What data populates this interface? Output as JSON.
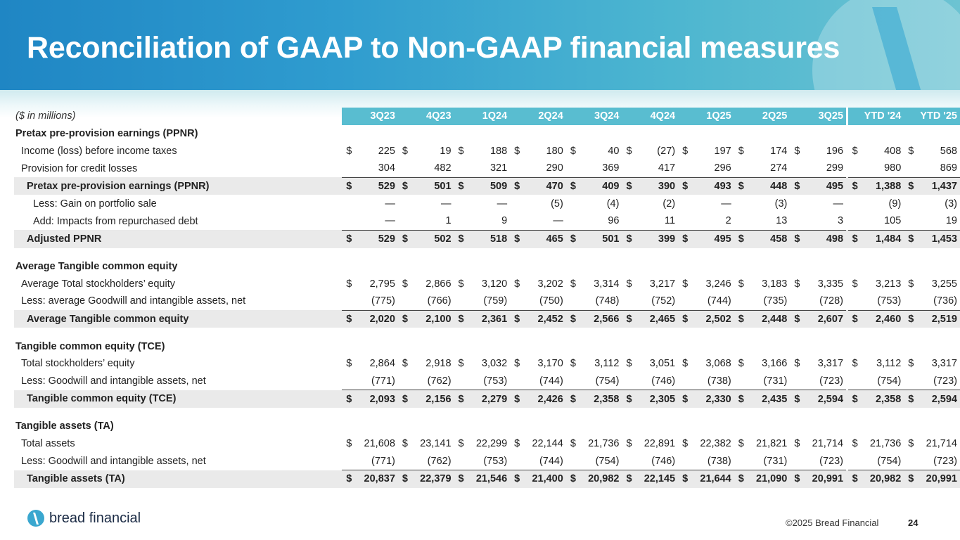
{
  "title": "Reconciliation of GAAP to Non-GAAP financial measures",
  "units_label": "($ in millions)",
  "columns": [
    "3Q23",
    "4Q23",
    "1Q24",
    "2Q24",
    "3Q24",
    "4Q24",
    "1Q25",
    "2Q25",
    "3Q25",
    "YTD '24",
    "YTD '25"
  ],
  "rows": [
    {
      "label": "Pretax pre-provision earnings (PPNR)",
      "style": "sec",
      "values": []
    },
    {
      "label": "Income (loss) before income taxes",
      "style": "sub",
      "cur": true,
      "values": [
        "225",
        "19",
        "188",
        "180",
        "40",
        "(27)",
        "197",
        "174",
        "196",
        "408",
        "568"
      ]
    },
    {
      "label": "Provision for credit losses",
      "style": "sub bline",
      "cur": false,
      "values": [
        "304",
        "482",
        "321",
        "290",
        "369",
        "417",
        "296",
        "274",
        "299",
        "980",
        "869"
      ]
    },
    {
      "label": "Pretax pre-provision earnings (PPNR)",
      "style": "tot shade bold",
      "cur": true,
      "values": [
        "529",
        "501",
        "509",
        "470",
        "409",
        "390",
        "493",
        "448",
        "495",
        "1,388",
        "1,437"
      ]
    },
    {
      "label": "Less: Gain on portfolio sale",
      "style": "sub2",
      "cur": false,
      "values": [
        "—",
        "—",
        "—",
        "(5)",
        "(4)",
        "(2)",
        "—",
        "(3)",
        "—",
        "(9)",
        "(3)"
      ]
    },
    {
      "label": "Add: Impacts from repurchased debt",
      "style": "sub2 bline",
      "cur": false,
      "values": [
        "—",
        "1",
        "9",
        "—",
        "96",
        "11",
        "2",
        "13",
        "3",
        "105",
        "19"
      ]
    },
    {
      "label": "Adjusted PPNR",
      "style": "tot shade bold",
      "cur": true,
      "values": [
        "529",
        "502",
        "518",
        "465",
        "501",
        "399",
        "495",
        "458",
        "498",
        "1,484",
        "1,453"
      ]
    },
    {
      "label": "",
      "style": "spacer",
      "values": []
    },
    {
      "label": "Average Tangible common equity",
      "style": "sec",
      "values": []
    },
    {
      "label": "Average Total stockholders’ equity",
      "style": "sub",
      "cur": true,
      "values": [
        "2,795",
        "2,866",
        "3,120",
        "3,202",
        "3,314",
        "3,217",
        "3,246",
        "3,183",
        "3,335",
        "3,213",
        "3,255"
      ]
    },
    {
      "label": "Less: average Goodwill and intangible assets, net",
      "style": "sub bline",
      "cur": false,
      "values": [
        "(775)",
        "(766)",
        "(759)",
        "(750)",
        "(748)",
        "(752)",
        "(744)",
        "(735)",
        "(728)",
        "(753)",
        "(736)"
      ]
    },
    {
      "label": "Average Tangible common equity",
      "style": "tot shade bold",
      "cur": true,
      "values": [
        "2,020",
        "2,100",
        "2,361",
        "2,452",
        "2,566",
        "2,465",
        "2,502",
        "2,448",
        "2,607",
        "2,460",
        "2,519"
      ]
    },
    {
      "label": "",
      "style": "spacer",
      "values": []
    },
    {
      "label": "Tangible common equity (TCE)",
      "style": "sec",
      "values": []
    },
    {
      "label": "Total stockholders’ equity",
      "style": "sub",
      "cur": true,
      "values": [
        "2,864",
        "2,918",
        "3,032",
        "3,170",
        "3,112",
        "3,051",
        "3,068",
        "3,166",
        "3,317",
        "3,112",
        "3,317"
      ]
    },
    {
      "label": "Less: Goodwill and intangible assets, net",
      "style": "sub bline",
      "cur": false,
      "values": [
        "(771)",
        "(762)",
        "(753)",
        "(744)",
        "(754)",
        "(746)",
        "(738)",
        "(731)",
        "(723)",
        "(754)",
        "(723)"
      ]
    },
    {
      "label": "Tangible common equity (TCE)",
      "style": "tot shade bold",
      "cur": true,
      "values": [
        "2,093",
        "2,156",
        "2,279",
        "2,426",
        "2,358",
        "2,305",
        "2,330",
        "2,435",
        "2,594",
        "2,358",
        "2,594"
      ]
    },
    {
      "label": "",
      "style": "spacer",
      "values": []
    },
    {
      "label": "Tangible assets (TA)",
      "style": "sec",
      "values": []
    },
    {
      "label": "Total assets",
      "style": "sub",
      "cur": true,
      "values": [
        "21,608",
        "23,141",
        "22,299",
        "22,144",
        "21,736",
        "22,891",
        "22,382",
        "21,821",
        "21,714",
        "21,736",
        "21,714"
      ]
    },
    {
      "label": "Less: Goodwill and intangible assets, net",
      "style": "sub bline",
      "cur": false,
      "values": [
        "(771)",
        "(762)",
        "(753)",
        "(744)",
        "(754)",
        "(746)",
        "(738)",
        "(731)",
        "(723)",
        "(754)",
        "(723)"
      ]
    },
    {
      "label": "Tangible assets (TA)",
      "style": "tot shade bold",
      "cur": true,
      "values": [
        "20,837",
        "22,379",
        "21,546",
        "21,400",
        "20,982",
        "22,145",
        "21,644",
        "21,090",
        "20,991",
        "20,982",
        "20,991"
      ]
    }
  ],
  "currency_symbol": "$",
  "footer": {
    "brand": "bread financial",
    "copyright": "©2025 Bread Financial",
    "page_number": "24"
  },
  "colors": {
    "header_blue": "#1f86c4",
    "header_teal": "#6cc3d2",
    "column_header": "#59bdd0"
  }
}
